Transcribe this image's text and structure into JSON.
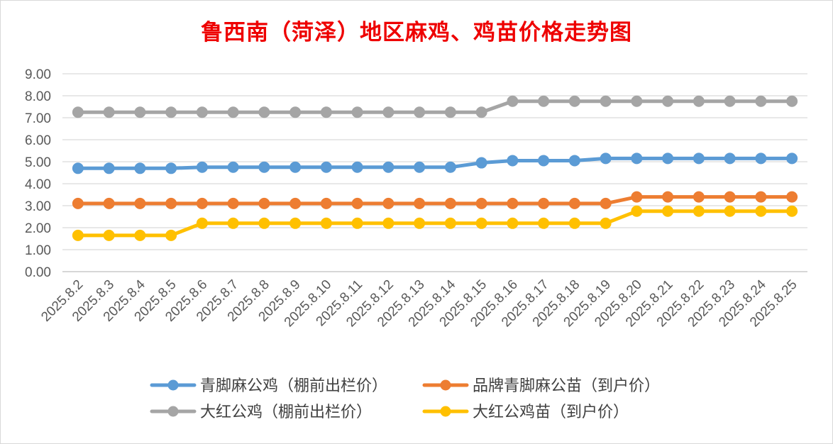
{
  "chart_data": {
    "type": "line",
    "title": "鲁西南（菏泽）地区麻鸡、鸡苗价格走势图",
    "xlabel": "",
    "ylabel": "",
    "ylim": [
      0,
      9
    ],
    "y_ticks": [
      "0.00",
      "1.00",
      "2.00",
      "3.00",
      "4.00",
      "5.00",
      "6.00",
      "7.00",
      "8.00",
      "9.00"
    ],
    "grid": true,
    "legend_position": "bottom",
    "categories": [
      "2025.8.2",
      "2025.8.3",
      "2025.8.4",
      "2025.8.5",
      "2025.8.6",
      "2025.8.7",
      "2025.8.8",
      "2025.8.9",
      "2025.8.10",
      "2025.8.11",
      "2025.8.12",
      "2025.8.13",
      "2025.8.14",
      "2025.8.15",
      "2025.8.16",
      "2025.8.17",
      "2025.8.18",
      "2025.8.19",
      "2025.8.20",
      "2025.8.21",
      "2025.8.22",
      "2025.8.23",
      "2025.8.24",
      "2025.8.25"
    ],
    "series": [
      {
        "name": "青脚麻公鸡（棚前出栏价）",
        "color": "#5b9bd5",
        "values": [
          4.7,
          4.7,
          4.7,
          4.7,
          4.75,
          4.75,
          4.75,
          4.75,
          4.75,
          4.75,
          4.75,
          4.75,
          4.75,
          4.95,
          5.05,
          5.05,
          5.05,
          5.15,
          5.15,
          5.15,
          5.15,
          5.15,
          5.15,
          5.15
        ]
      },
      {
        "name": "品牌青脚麻公苗（到户价）",
        "color": "#ed7d31",
        "values": [
          3.1,
          3.1,
          3.1,
          3.1,
          3.1,
          3.1,
          3.1,
          3.1,
          3.1,
          3.1,
          3.1,
          3.1,
          3.1,
          3.1,
          3.1,
          3.1,
          3.1,
          3.1,
          3.4,
          3.4,
          3.4,
          3.4,
          3.4,
          3.4
        ]
      },
      {
        "name": "大红公鸡（棚前出栏价）",
        "color": "#a5a5a5",
        "values": [
          7.25,
          7.25,
          7.25,
          7.25,
          7.25,
          7.25,
          7.25,
          7.25,
          7.25,
          7.25,
          7.25,
          7.25,
          7.25,
          7.25,
          7.75,
          7.75,
          7.75,
          7.75,
          7.75,
          7.75,
          7.75,
          7.75,
          7.75,
          7.75
        ]
      },
      {
        "name": "大红公鸡苗（到户价）",
        "color": "#ffc000",
        "values": [
          1.65,
          1.65,
          1.65,
          1.65,
          2.2,
          2.2,
          2.2,
          2.2,
          2.2,
          2.2,
          2.2,
          2.2,
          2.2,
          2.2,
          2.2,
          2.2,
          2.2,
          2.2,
          2.75,
          2.75,
          2.75,
          2.75,
          2.75,
          2.75
        ]
      }
    ]
  }
}
